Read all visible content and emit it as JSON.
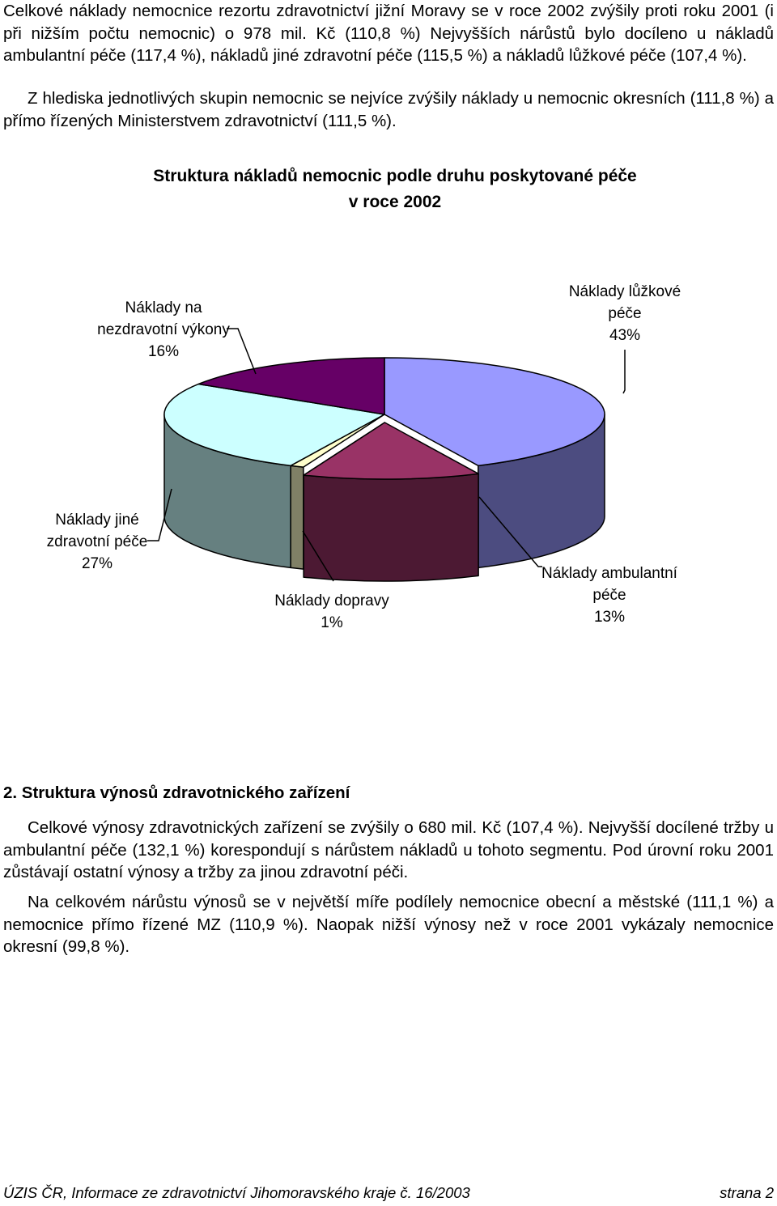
{
  "paragraphs": {
    "p1": "Celkové náklady nemocnice rezortu zdravotnictví jižní Moravy se v roce 2002 zvýšily proti roku 2001 (i při nižším počtu nemocnic) o 978 mil. Kč (110,8 %) Nejvyšších nárůstů bylo docíleno u nákladů ambulantní péče (117,4 %), nákladů jiné zdravotní péče (115,5 %) a nákladů lůžkové péče (107,4 %).",
    "p2": "Z hlediska jednotlivých skupin nemocnic se nejvíce zvýšily náklady u nemocnic okresních (111,8 %) a přímo řízených Ministerstvem zdravotnictví (111,5 %).",
    "p3": "Celkové výnosy zdravotnických zařízení se zvýšily o 680 mil. Kč (107,4 %). Nejvyšší docílené tržby u ambulantní péče (132,1 %) korespondují s nárůstem nákladů u tohoto segmentu. Pod úrovní roku 2001 zůstávají ostatní výnosy a tržby za jinou zdravotní péči.",
    "p4": "Na celkovém nárůstu výnosů se v největší míře podílely nemocnice obecní a městské (111,1 %) a nemocnice přímo řízené MZ (110,9 %). Naopak nižší výnosy než v roce 2001 vykázaly nemocnice okresní (99,8 %)."
  },
  "section_heading": "2. Struktura výnosů zdravotnického zařízení",
  "footer": {
    "left": "ÚZIS ČR, Informace ze zdravotnictví Jihomoravského kraje č. 16/2003",
    "right": "strana 2"
  },
  "chart_data": {
    "type": "pie",
    "title": "Struktura nákladů nemocnic podle druhu poskytované péče",
    "subtitle": "v roce 2002",
    "slices": [
      {
        "name_lines": [
          "Náklady lůžkové",
          "péče"
        ],
        "value": 43,
        "value_label": "43%",
        "top_color": "#9999FF",
        "side_color": "#4C4C80"
      },
      {
        "name_lines": [
          "Náklady ambulantní",
          "péče"
        ],
        "value": 13,
        "value_label": "13%",
        "top_color": "#993366",
        "side_color": "#4C1933"
      },
      {
        "name_lines": [
          "Náklady dopravy"
        ],
        "value": 1,
        "value_label": "1%",
        "top_color": "#FFFFCC",
        "side_color": "#808066"
      },
      {
        "name_lines": [
          "Náklady jiné",
          "zdravotní péče"
        ],
        "value": 27,
        "value_label": "27%",
        "top_color": "#CCFFFF",
        "side_color": "#668080"
      },
      {
        "name_lines": [
          "Náklady na",
          "nezdravotní výkony"
        ],
        "value": 16,
        "value_label": "16%",
        "top_color": "#660066",
        "side_color": "#330033"
      }
    ]
  }
}
